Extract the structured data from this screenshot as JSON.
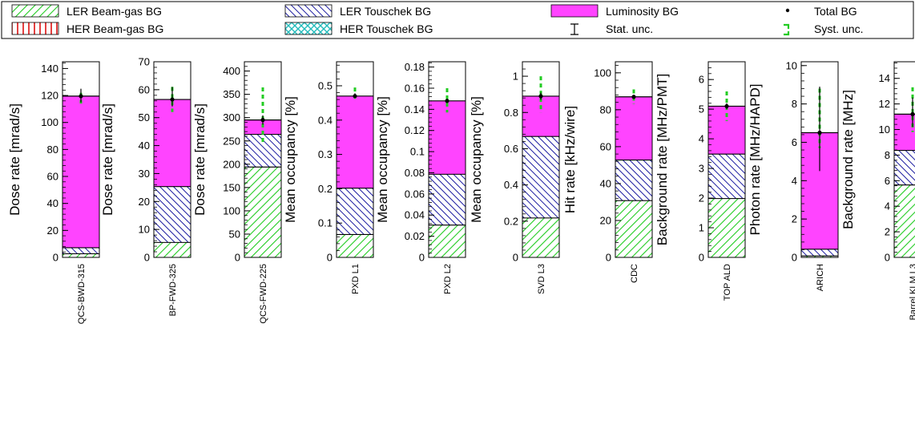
{
  "legend": {
    "items": [
      {
        "key": "ler_bg",
        "label": "LER Beam-gas BG"
      },
      {
        "key": "ler_tou",
        "label": "LER Touschek BG"
      },
      {
        "key": "lumi",
        "label": "Luminosity BG"
      },
      {
        "key": "total",
        "label": "Total BG"
      },
      {
        "key": "her_bg",
        "label": "HER Beam-gas BG"
      },
      {
        "key": "her_tou",
        "label": "HER Touschek BG"
      },
      {
        "key": "stat",
        "label": "Stat. unc."
      },
      {
        "key": "syst",
        "label": "Syst. unc."
      }
    ]
  },
  "colors": {
    "ler_bg": "#22cc22",
    "ler_tou": "#1a1aa0",
    "lumi": "#ff44ff",
    "her_bg": "#dd1111",
    "her_tou": "#22bbbb",
    "syst": "#22cc22",
    "total": "#000000"
  },
  "chart_data": [
    {
      "type": "bar",
      "category": "QCS-BWD-315",
      "ylabel": "Dose rate [mrad/s]",
      "ylim": [
        0,
        145
      ],
      "yticks": [
        0,
        20,
        40,
        60,
        80,
        100,
        120,
        140
      ],
      "stack": {
        "ler_bg": 3,
        "her_bg": 0,
        "ler_tou": 4.5,
        "her_tou": 0,
        "lumi": 112
      },
      "total": 119.5,
      "stat_unc": [
        115,
        125
      ],
      "syst_unc": [
        114,
        122
      ]
    },
    {
      "type": "bar",
      "category": "BP-FWD-325",
      "ylabel": "Dose rate [mrad/s]",
      "ylim": [
        0,
        70
      ],
      "yticks": [
        0,
        10,
        20,
        30,
        40,
        50,
        60,
        70
      ],
      "stack": {
        "ler_bg": 5.5,
        "her_bg": 0,
        "ler_tou": 20,
        "her_tou": 0,
        "lumi": 31
      },
      "total": 56.5,
      "stat_unc": [
        54,
        61
      ],
      "syst_unc": [
        52,
        61
      ]
    },
    {
      "type": "bar",
      "category": "QCS-FWD-225",
      "ylabel": "Dose rate [mrad/s]",
      "ylim": [
        0,
        420
      ],
      "yticks": [
        0,
        50,
        100,
        150,
        200,
        250,
        300,
        350,
        400
      ],
      "stack": {
        "ler_bg": 195,
        "her_bg": 0,
        "ler_tou": 70,
        "her_tou": 0,
        "lumi": 30
      },
      "total": 295,
      "stat_unc": [
        285,
        305
      ],
      "syst_unc": [
        245,
        365
      ]
    },
    {
      "type": "bar",
      "category": "PXD L1",
      "ylabel": "Mean occupancy [%]",
      "ylim": [
        0,
        0.57
      ],
      "yticks": [
        0,
        0.1,
        0.2,
        0.3,
        0.4,
        0.5
      ],
      "stack": {
        "ler_bg": 0.068,
        "her_bg": 0,
        "ler_tou": 0.135,
        "her_tou": 0,
        "lumi": 0.267
      },
      "total": 0.47,
      "stat_unc": [
        0.465,
        0.478
      ],
      "syst_unc": [
        0.455,
        0.495
      ]
    },
    {
      "type": "bar",
      "category": "PXD L2",
      "ylabel": "Mean occupancy [%]",
      "ylim": [
        0,
        0.185
      ],
      "yticks": [
        0,
        0.02,
        0.04,
        0.06,
        0.08,
        0.1,
        0.12,
        0.14,
        0.16,
        0.18
      ],
      "stack": {
        "ler_bg": 0.031,
        "her_bg": 0,
        "ler_tou": 0.048,
        "her_tou": 0,
        "lumi": 0.069
      },
      "total": 0.148,
      "stat_unc": [
        0.146,
        0.15
      ],
      "syst_unc": [
        0.137,
        0.16
      ]
    },
    {
      "type": "bar",
      "category": "SVD L3",
      "ylabel": "Mean occupancy [%]",
      "ylim": [
        0,
        1.08
      ],
      "yticks": [
        0,
        0.2,
        0.4,
        0.6,
        0.8,
        1
      ],
      "stack": {
        "ler_bg": 0.22,
        "her_bg": 0,
        "ler_tou": 0.45,
        "her_tou": 0,
        "lumi": 0.22
      },
      "total": 0.89,
      "stat_unc": [
        0.87,
        0.91
      ],
      "syst_unc": [
        0.8,
        1.0
      ]
    },
    {
      "type": "bar",
      "category": "CDC",
      "ylabel": "Hit rate [kHz/wire]",
      "ylim": [
        0,
        106
      ],
      "yticks": [
        0,
        20,
        40,
        60,
        80,
        100
      ],
      "stack": {
        "ler_bg": 31,
        "her_bg": 0,
        "ler_tou": 22,
        "her_tou": 0,
        "lumi": 34
      },
      "total": 87,
      "stat_unc": [
        86,
        88
      ],
      "syst_unc": [
        83,
        91
      ]
    },
    {
      "type": "bar",
      "category": "TOP ALD",
      "ylabel": "Background rate [MHz/PMT]",
      "ylim": [
        0,
        6.6
      ],
      "yticks": [
        0,
        1,
        2,
        3,
        4,
        5,
        6
      ],
      "stack": {
        "ler_bg": 2.0,
        "her_bg": 0,
        "ler_tou": 1.5,
        "her_tou": 0,
        "lumi": 1.6
      },
      "total": 5.1,
      "stat_unc": [
        5.0,
        5.2
      ],
      "syst_unc": [
        4.6,
        5.6
      ]
    },
    {
      "type": "bar",
      "category": "ARICH",
      "ylabel": "Photon rate [MHz/HAPD]",
      "ylim": [
        0,
        10.2
      ],
      "yticks": [
        0,
        2,
        4,
        6,
        8,
        10
      ],
      "stack": {
        "ler_bg": 0.1,
        "her_bg": 0,
        "ler_tou": 0.35,
        "her_tou": 0,
        "lumi": 6.05
      },
      "total": 6.5,
      "stat_unc": [
        4.5,
        8.9
      ],
      "syst_unc": [
        5.7,
        8.8
      ]
    },
    {
      "type": "bar",
      "category": "Barrel KLM L3",
      "ylabel": "Background rate [MHz]",
      "ylim": [
        0,
        15.3
      ],
      "yticks": [
        0,
        2,
        4,
        6,
        8,
        10,
        12,
        14
      ],
      "stack": {
        "ler_bg": 5.7,
        "her_bg": 0,
        "ler_tou": 2.7,
        "her_tou": 0,
        "lumi": 2.8
      },
      "total": 11.2,
      "stat_unc": [
        10.2,
        12.5
      ],
      "syst_unc": [
        9.8,
        13.3
      ]
    }
  ]
}
